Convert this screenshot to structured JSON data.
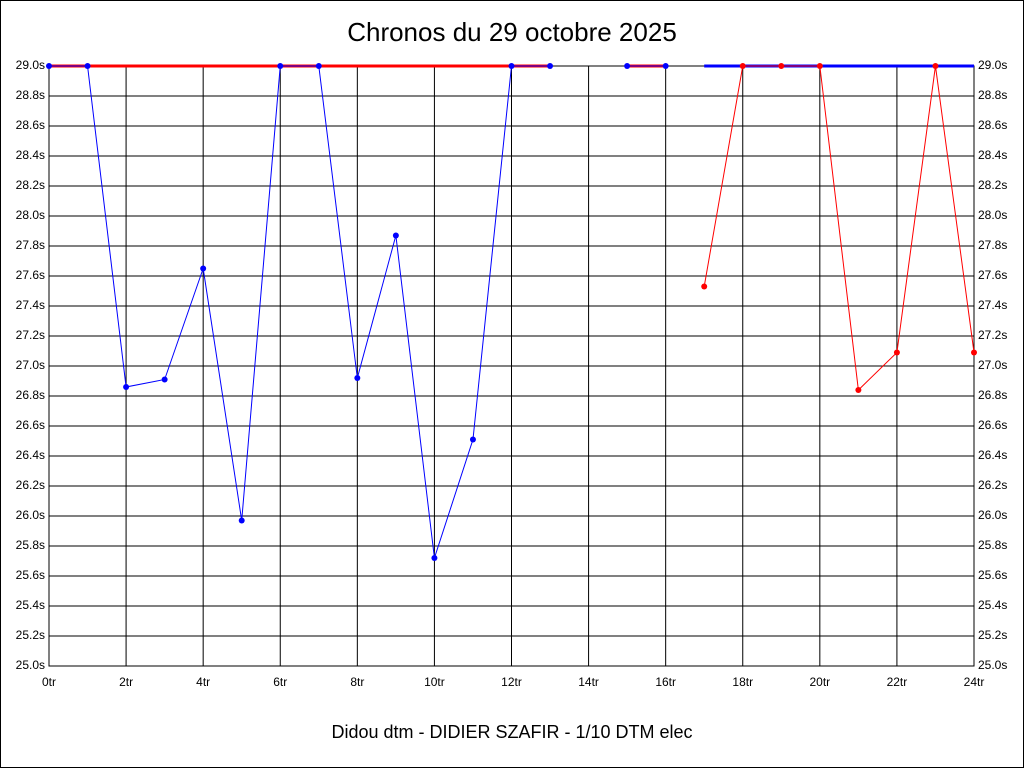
{
  "chart_data": {
    "type": "line",
    "title": "Chronos du 29 octobre 2025",
    "xlabel": "Didou dtm - DIDIER SZAFIR - 1/10 DTM elec",
    "x": [
      0,
      1,
      2,
      3,
      4,
      5,
      6,
      7,
      8,
      9,
      10,
      11,
      12,
      13,
      14,
      15,
      16,
      17,
      18,
      19,
      20,
      21,
      22,
      23,
      24
    ],
    "series": [
      {
        "color": "#ff0000",
        "width": 3,
        "markers": false,
        "values": [
          29.0,
          29.0,
          29.0,
          29.0,
          29.0,
          29.0,
          29.0,
          29.0,
          29.0,
          29.0,
          29.0,
          29.0,
          29.0,
          29.0,
          null,
          29.0,
          29.0,
          null,
          null,
          null,
          null,
          null,
          null,
          null,
          null
        ]
      },
      {
        "color": "#0000ff",
        "width": 3,
        "markers": false,
        "values": [
          null,
          null,
          null,
          null,
          null,
          null,
          null,
          null,
          null,
          null,
          null,
          null,
          null,
          null,
          null,
          null,
          null,
          29.0,
          29.0,
          29.0,
          29.0,
          29.0,
          29.0,
          29.0,
          29.0
        ]
      },
      {
        "color": "#0000ff",
        "width": 1,
        "markers": true,
        "values": [
          29.0,
          29.0,
          26.86,
          26.91,
          27.65,
          25.97,
          29.0,
          29.0,
          26.92,
          27.87,
          25.72,
          26.51,
          29.0,
          29.0,
          null,
          29.0,
          29.0,
          null,
          null,
          null,
          null,
          null,
          null,
          null,
          null
        ]
      },
      {
        "color": "#ff0000",
        "width": 1,
        "markers": true,
        "values": [
          null,
          null,
          null,
          null,
          null,
          null,
          null,
          null,
          null,
          null,
          null,
          null,
          null,
          null,
          null,
          null,
          null,
          27.53,
          29.0,
          29.0,
          29.0,
          26.84,
          27.09,
          29.0,
          27.09
        ]
      }
    ],
    "xlim": [
      0,
      24
    ],
    "xticks": [
      {
        "value": 0,
        "label": "0tr"
      },
      {
        "value": 2,
        "label": "2tr"
      },
      {
        "value": 4,
        "label": "4tr"
      },
      {
        "value": 6,
        "label": "6tr"
      },
      {
        "value": 8,
        "label": "8tr"
      },
      {
        "value": 10,
        "label": "10tr"
      },
      {
        "value": 12,
        "label": "12tr"
      },
      {
        "value": 14,
        "label": "14tr"
      },
      {
        "value": 16,
        "label": "16tr"
      },
      {
        "value": 18,
        "label": "18tr"
      },
      {
        "value": 20,
        "label": "20tr"
      },
      {
        "value": 22,
        "label": "22tr"
      },
      {
        "value": 24,
        "label": "24tr"
      }
    ],
    "ylim": [
      25.0,
      29.0
    ],
    "yticks": [
      {
        "value": 25.0,
        "label": "25.0s"
      },
      {
        "value": 25.2,
        "label": "25.2s"
      },
      {
        "value": 25.4,
        "label": "25.4s"
      },
      {
        "value": 25.6,
        "label": "25.6s"
      },
      {
        "value": 25.8,
        "label": "25.8s"
      },
      {
        "value": 26.0,
        "label": "26.0s"
      },
      {
        "value": 26.2,
        "label": "26.2s"
      },
      {
        "value": 26.4,
        "label": "26.4s"
      },
      {
        "value": 26.6,
        "label": "26.6s"
      },
      {
        "value": 26.8,
        "label": "26.8s"
      },
      {
        "value": 27.0,
        "label": "27.0s"
      },
      {
        "value": 27.2,
        "label": "27.2s"
      },
      {
        "value": 27.4,
        "label": "27.4s"
      },
      {
        "value": 27.6,
        "label": "27.6s"
      },
      {
        "value": 27.8,
        "label": "27.8s"
      },
      {
        "value": 28.0,
        "label": "28.0s"
      },
      {
        "value": 28.2,
        "label": "28.2s"
      },
      {
        "value": 28.4,
        "label": "28.4s"
      },
      {
        "value": 28.6,
        "label": "28.6s"
      },
      {
        "value": 28.8,
        "label": "28.8s"
      },
      {
        "value": 29.0,
        "label": "29.0s"
      }
    ],
    "grid": true
  }
}
